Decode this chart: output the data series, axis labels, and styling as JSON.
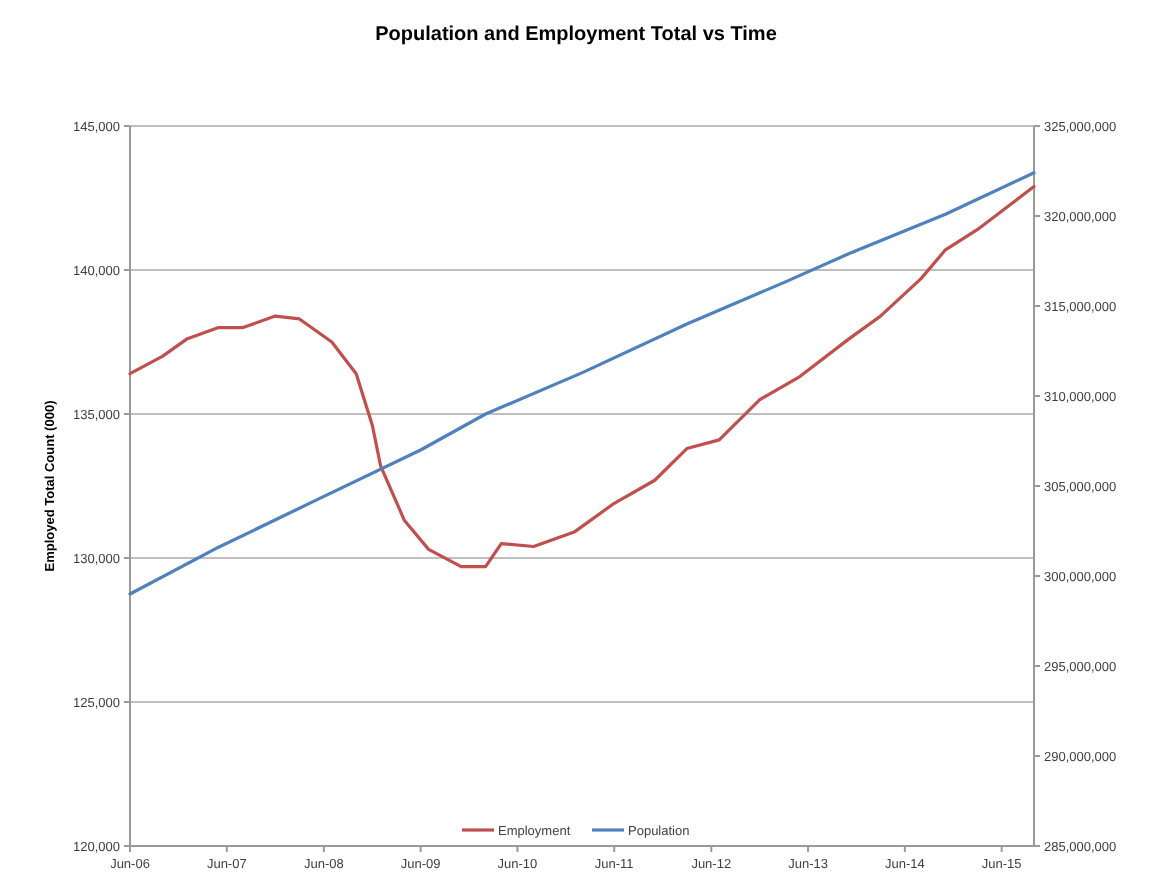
{
  "chart_data": {
    "type": "line",
    "title": "Population and Employment Total vs Time",
    "ylabel": "Employed Total Count (000)",
    "xlim": [
      "2006-06",
      "2015-10"
    ],
    "xticks": [
      {
        "value": "2006-06",
        "label": "Jun-06"
      },
      {
        "value": "2007-06",
        "label": "Jun-07"
      },
      {
        "value": "2008-06",
        "label": "Jun-08"
      },
      {
        "value": "2009-06",
        "label": "Jun-09"
      },
      {
        "value": "2010-06",
        "label": "Jun-10"
      },
      {
        "value": "2011-06",
        "label": "Jun-11"
      },
      {
        "value": "2012-06",
        "label": "Jun-12"
      },
      {
        "value": "2013-06",
        "label": "Jun-13"
      },
      {
        "value": "2014-06",
        "label": "Jun-14"
      },
      {
        "value": "2015-06",
        "label": "Jun-15"
      }
    ],
    "ylim": [
      120000,
      145000
    ],
    "yticks": [
      {
        "value": 120000,
        "label": "120,000"
      },
      {
        "value": 125000,
        "label": "125,000"
      },
      {
        "value": 130000,
        "label": "130,000"
      },
      {
        "value": 135000,
        "label": "135,000"
      },
      {
        "value": 140000,
        "label": "140,000"
      },
      {
        "value": 145000,
        "label": "145,000"
      }
    ],
    "y2lim": [
      285000000,
      325000000
    ],
    "y2ticks": [
      {
        "value": 285000000,
        "label": "285,000,000"
      },
      {
        "value": 290000000,
        "label": "290,000,000"
      },
      {
        "value": 295000000,
        "label": "295,000,000"
      },
      {
        "value": 300000000,
        "label": "300,000,000"
      },
      {
        "value": 305000000,
        "label": "305,000,000"
      },
      {
        "value": 310000000,
        "label": "310,000,000"
      },
      {
        "value": 315000000,
        "label": "315,000,000"
      },
      {
        "value": 320000000,
        "label": "320,000,000"
      },
      {
        "value": 325000000,
        "label": "325,000,000"
      }
    ],
    "grid": "y",
    "legend": "bottom",
    "series": [
      {
        "name": "Employment",
        "color": "#c0504d",
        "x": [
          "2006-06",
          "2006-10",
          "2007-01",
          "2007-05",
          "2007-08",
          "2007-12",
          "2008-03",
          "2008-07",
          "2008-10",
          "2008-12",
          "2009-01",
          "2009-04",
          "2009-07",
          "2009-11",
          "2010-02",
          "2010-04",
          "2010-08",
          "2011-01",
          "2011-06",
          "2011-11",
          "2012-03",
          "2012-07",
          "2012-12",
          "2013-05",
          "2013-11",
          "2014-03",
          "2014-08",
          "2014-11",
          "2015-03",
          "2015-10"
        ],
        "values": [
          136400,
          137000,
          137600,
          138000,
          138000,
          138400,
          138300,
          137500,
          136400,
          134600,
          133200,
          131300,
          130300,
          129700,
          129700,
          130500,
          130400,
          130900,
          131900,
          132700,
          133800,
          134100,
          135500,
          136300,
          137600,
          138400,
          139700,
          140700,
          141400,
          142900
        ]
      },
      {
        "name": "Population",
        "color": "#4f81bd",
        "axis": "y2",
        "x": [
          "2006-06",
          "2007-05",
          "2008-05",
          "2009-06",
          "2010-02",
          "2011-02",
          "2012-03",
          "2013-03",
          "2013-11",
          "2014-11",
          "2015-10"
        ],
        "values": [
          299000000,
          301600000,
          304200000,
          307000000,
          309000000,
          311300000,
          314000000,
          316300000,
          317900000,
          320100000,
          322400000
        ]
      }
    ]
  }
}
